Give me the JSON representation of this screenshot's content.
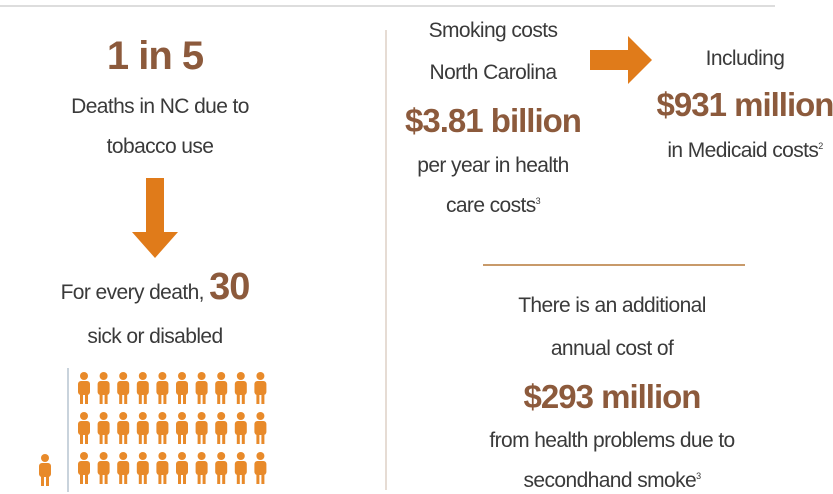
{
  "left": {
    "headline": "1 in 5",
    "deaths_line1": "Deaths in NC due to",
    "deaths_line2": "tobacco use",
    "every_death": "For every death,",
    "sick_count": 30,
    "sick_line": "sick or disabled"
  },
  "costs": {
    "line1": "Smoking costs",
    "line2": "North Carolina",
    "amount": "$3.81 billion",
    "line3": "per year in health",
    "line4": "care costs",
    "note": "3"
  },
  "medicaid": {
    "line1": "Including",
    "amount": "$931 million",
    "line2": "in Medicaid costs",
    "note": "2"
  },
  "secondhand": {
    "line1": "There is an additional",
    "line2": "annual cost of",
    "amount": "$293 million",
    "line3": "from health problems due to",
    "line4": "secondhand smoke",
    "note": "3"
  }
}
